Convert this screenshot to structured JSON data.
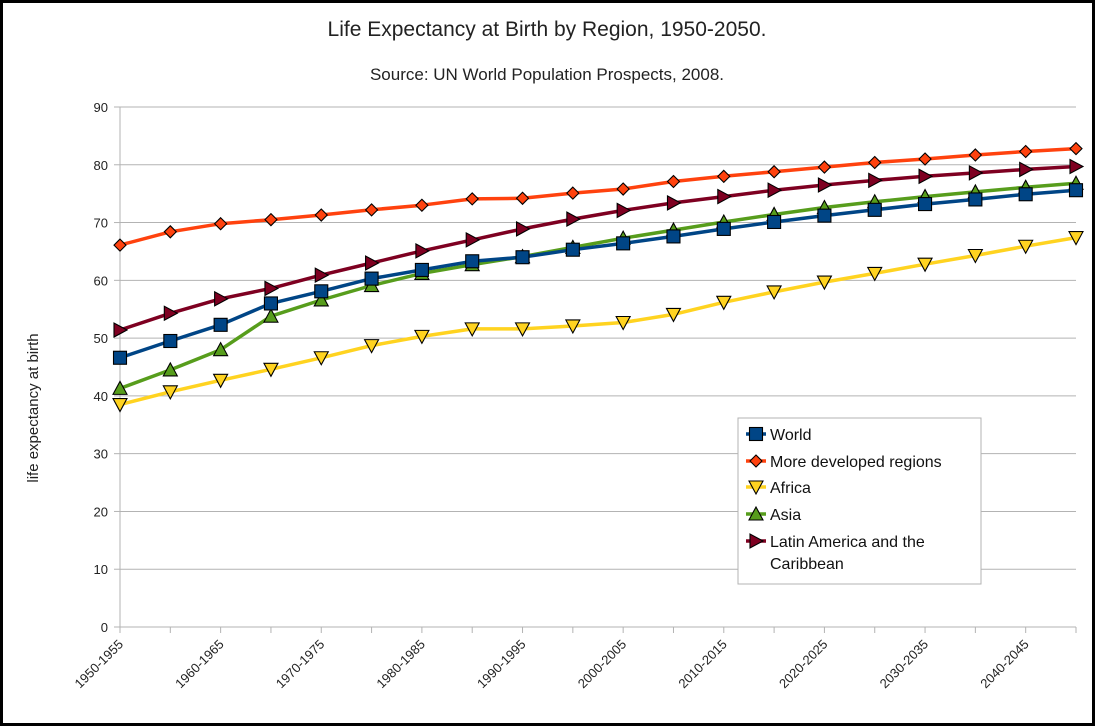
{
  "chart_data": {
    "type": "line",
    "title": "Life Expectancy at Birth by Region, 1950-2050.",
    "subtitle": "Source: UN World Population Prospects, 2008.",
    "xlabel": "",
    "ylabel": "life expectancy at birth",
    "ylim": [
      0,
      90
    ],
    "yticks": [
      0,
      10,
      20,
      30,
      40,
      50,
      60,
      70,
      80,
      90
    ],
    "grid": true,
    "legend_position": "bottom-right",
    "categories": [
      "1950-1955",
      "1955-1960",
      "1960-1965",
      "1965-1970",
      "1970-1975",
      "1975-1980",
      "1980-1985",
      "1985-1990",
      "1990-1995",
      "1995-2000",
      "2000-2005",
      "2005-2010",
      "2010-2015",
      "2015-2020",
      "2020-2025",
      "2025-2030",
      "2030-2035",
      "2035-2040",
      "2040-2045",
      "2045-2050"
    ],
    "category_labels": [
      "1950-1955",
      "",
      "1960-1965",
      "",
      "1970-1975",
      "",
      "1980-1985",
      "",
      "1990-1995",
      "",
      "2000-2005",
      "",
      "2010-2015",
      "",
      "2020-2025",
      "",
      "2030-2035",
      "",
      "2040-2045",
      ""
    ],
    "series": [
      {
        "name": "World",
        "color": "#004586",
        "marker": "square",
        "values": [
          46.6,
          49.5,
          52.3,
          56.0,
          58.1,
          60.3,
          61.8,
          63.3,
          64.0,
          65.3,
          66.4,
          67.6,
          68.9,
          70.1,
          71.2,
          72.2,
          73.2,
          74.0,
          74.9,
          75.6
        ]
      },
      {
        "name": "More developed regions",
        "color": "#ff420e",
        "marker": "diamond",
        "values": [
          66.1,
          68.4,
          69.8,
          70.5,
          71.3,
          72.2,
          73.0,
          74.1,
          74.2,
          75.1,
          75.8,
          77.1,
          78.0,
          78.8,
          79.6,
          80.4,
          81.0,
          81.7,
          82.3,
          82.8
        ]
      },
      {
        "name": "Africa",
        "color": "#ffd320",
        "marker": "triangle-down",
        "values": [
          38.5,
          40.7,
          42.7,
          44.6,
          46.6,
          48.7,
          50.3,
          51.6,
          51.6,
          52.1,
          52.7,
          54.1,
          56.2,
          58.0,
          59.7,
          61.2,
          62.8,
          64.3,
          65.9,
          67.4
        ]
      },
      {
        "name": "Asia",
        "color": "#579d1c",
        "marker": "triangle-up",
        "values": [
          41.3,
          44.5,
          48.0,
          53.8,
          56.6,
          59.1,
          61.2,
          62.7,
          64.1,
          65.7,
          67.3,
          68.7,
          70.1,
          71.4,
          72.6,
          73.6,
          74.5,
          75.3,
          76.1,
          76.8
        ]
      },
      {
        "name": "Latin America and the Caribbean",
        "legend_lines": [
          "Latin America and the",
          "Caribbean"
        ],
        "color": "#7e0021",
        "marker": "triangle-right",
        "values": [
          51.4,
          54.3,
          56.8,
          58.6,
          60.9,
          63.0,
          65.1,
          67.0,
          68.9,
          70.6,
          72.1,
          73.4,
          74.5,
          75.6,
          76.5,
          77.3,
          78.0,
          78.6,
          79.2,
          79.7
        ]
      }
    ]
  }
}
